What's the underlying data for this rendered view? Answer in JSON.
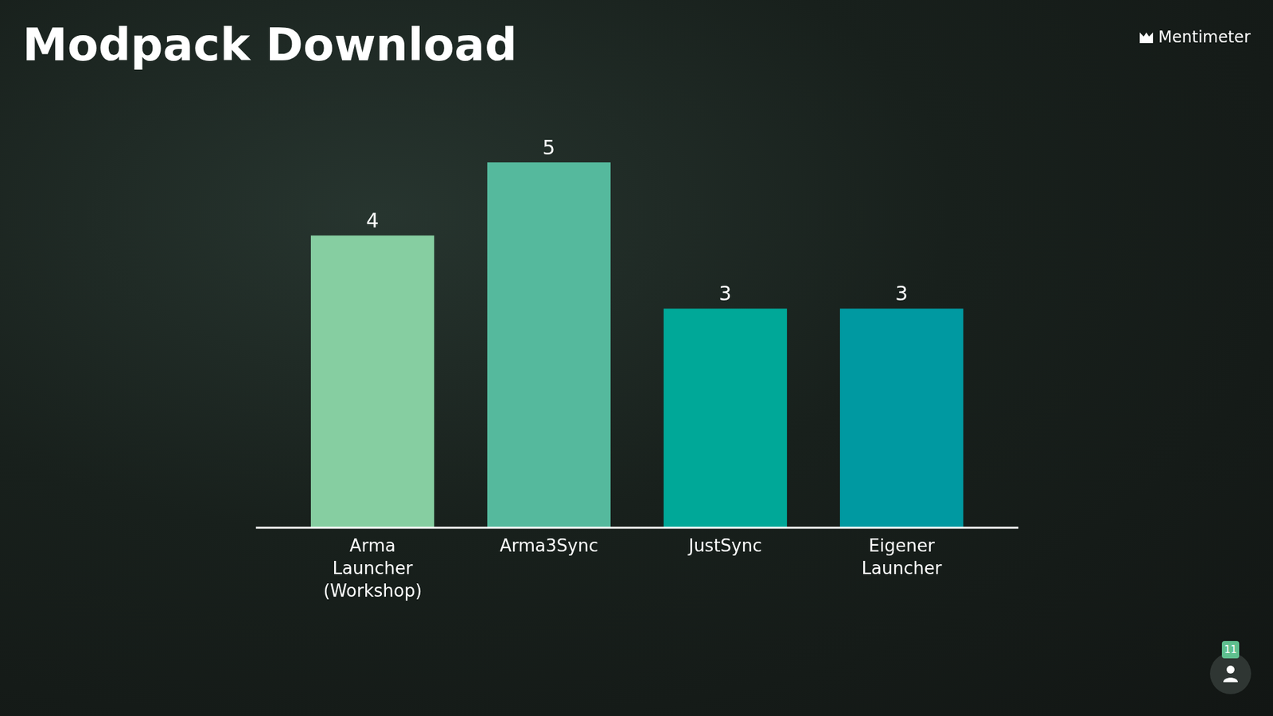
{
  "chart_data": {
    "type": "bar",
    "title": "Modpack Download",
    "brand": "Mentimeter",
    "respondents": 11,
    "categories": [
      "Arma Launcher (Workshop)",
      "Arma3Sync",
      "JustSync",
      "Eigener Launcher"
    ],
    "values": [
      4,
      5,
      3,
      3
    ],
    "colors": [
      "#86cea1",
      "#55b99d",
      "#00a898",
      "#0099a1"
    ],
    "ylim": [
      0,
      5
    ],
    "data_labels": true,
    "tick_labels": "x",
    "grid": false
  }
}
